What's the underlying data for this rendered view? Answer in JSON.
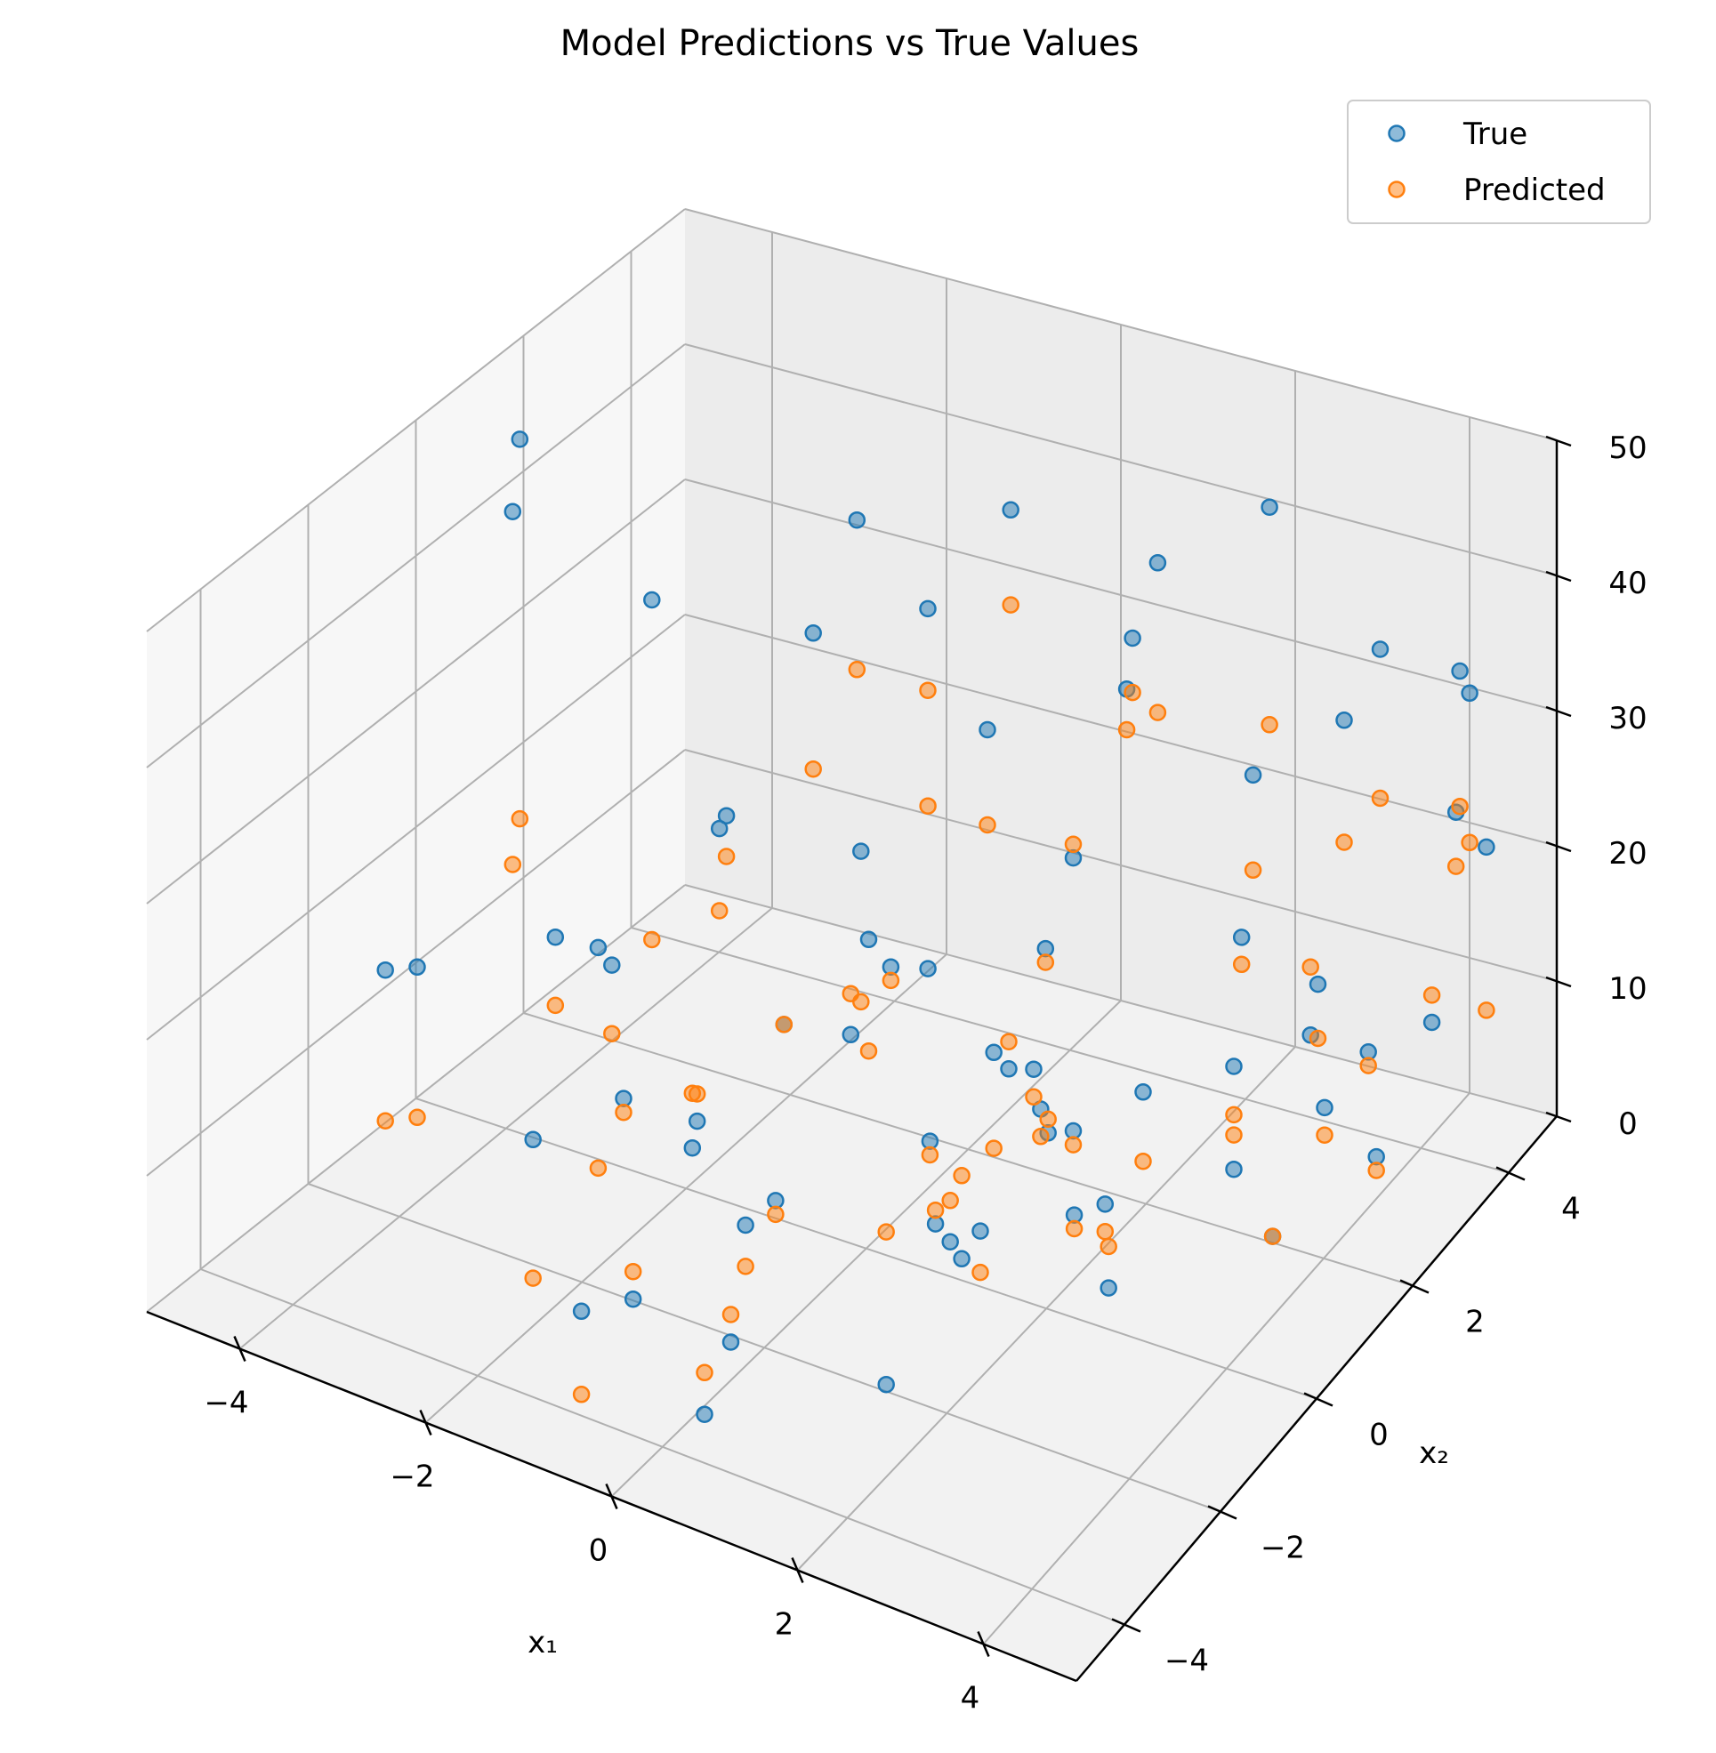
{
  "chart_data": {
    "type": "scatter3d",
    "title": "Model Predictions vs True Values",
    "xlabel": "x₁",
    "ylabel": "x₂",
    "zlabel": "",
    "xlim": [
      -5,
      5
    ],
    "ylim": [
      -5,
      5
    ],
    "zlim": [
      0,
      50
    ],
    "xticks": [
      "−4",
      "−2",
      "0",
      "2",
      "4"
    ],
    "yticks": [
      "−4",
      "−2",
      "0",
      "2",
      "4"
    ],
    "zticks": [
      "0",
      "10",
      "20",
      "30",
      "40",
      "50"
    ],
    "grid": true,
    "legend_position": "top-right",
    "series": [
      {
        "name": "True",
        "color": "#1f77b4",
        "points": [
          [
            -4.8,
            1.6,
            44
          ],
          [
            -4.4,
            0.8,
            42
          ],
          [
            -3.2,
            1.4,
            36
          ],
          [
            -3.4,
            -2.7,
            22
          ],
          [
            -3.1,
            -0.6,
            18
          ],
          [
            -1.2,
            0.5,
            12
          ],
          [
            -1.9,
            -1.6,
            22
          ],
          [
            -3.0,
            -4.0,
            27
          ],
          [
            -0.2,
            -4.4,
            26
          ],
          [
            -1.4,
            -0.4,
            29
          ],
          [
            -0.8,
            1.1,
            10
          ],
          [
            -1.5,
            3.8,
            4
          ],
          [
            -1.8,
            2.1,
            34
          ],
          [
            -2.6,
            1.8,
            20
          ],
          [
            -1.7,
            -0.4,
            5
          ],
          [
            -1.1,
            -2.6,
            3
          ],
          [
            -0.6,
            -4.5,
            10
          ],
          [
            -0.9,
            -4.9,
            23
          ],
          [
            -0.4,
            0.6,
            26
          ],
          [
            -0.1,
            -1.6,
            9
          ],
          [
            0.2,
            0.9,
            5
          ],
          [
            0.8,
            1.1,
            12
          ],
          [
            0.6,
            0.3,
            2
          ],
          [
            1.7,
            1.1,
            2
          ],
          [
            1.1,
            -0.3,
            4
          ],
          [
            1.5,
            -2.3,
            2
          ],
          [
            2.0,
            -1.7,
            10
          ],
          [
            2.3,
            -0.8,
            21
          ],
          [
            2.9,
            -1.1,
            19
          ],
          [
            3.4,
            -0.6,
            21
          ],
          [
            3.1,
            1.8,
            13
          ],
          [
            3.3,
            3.0,
            11
          ],
          [
            2.6,
            2.7,
            1
          ],
          [
            3.7,
            1.5,
            3
          ],
          [
            3.9,
            2.2,
            10
          ],
          [
            4.1,
            2.9,
            4
          ],
          [
            1.4,
            3.3,
            41
          ],
          [
            2.5,
            3.6,
            46
          ],
          [
            3.2,
            4.6,
            33
          ],
          [
            4.0,
            4.8,
            32
          ],
          [
            4.5,
            4.1,
            34
          ],
          [
            4.8,
            3.9,
            24
          ],
          [
            1.5,
            4.8,
            8
          ],
          [
            3.9,
            4.9,
            21
          ],
          [
            2.9,
            4.4,
            28
          ],
          [
            0.5,
            3.2,
            18
          ],
          [
            -0.3,
            2.9,
            27
          ],
          [
            1.0,
            3.5,
            34
          ],
          [
            -0.5,
            3.7,
            40
          ],
          [
            0.3,
            4.6,
            25
          ],
          [
            2.2,
            3.8,
            25
          ],
          [
            0.7,
            2.3,
            15
          ],
          [
            2.6,
            4.4,
            8
          ],
          [
            0.0,
            2.8,
            3
          ],
          [
            1.8,
            -3.2,
            38
          ],
          [
            -0.8,
            2.6,
            36
          ],
          [
            -1.6,
            2.6,
            41
          ],
          [
            -2.1,
            4.1,
            2
          ],
          [
            0.4,
            -3.9,
            3
          ],
          [
            2.8,
            -0.2,
            4
          ],
          [
            -0.2,
            -2.3,
            1
          ],
          [
            1.6,
            -0.6,
            7
          ],
          [
            0.9,
            2.0,
            3
          ],
          [
            -2.4,
            0.9,
            1
          ],
          [
            1.1,
            1.5,
            7
          ],
          [
            3.4,
            4.0,
            6
          ],
          [
            2.1,
            1.0,
            4
          ],
          [
            -0.6,
            -1.3,
            5
          ],
          [
            4.4,
            3.5,
            12
          ],
          [
            -1.2,
            -3.1,
            30
          ]
        ]
      },
      {
        "name": "Predicted",
        "color": "#ff7f0e",
        "points": [
          [
            -4.8,
            1.6,
            16
          ],
          [
            -4.4,
            0.8,
            16
          ],
          [
            -3.2,
            1.4,
            11
          ],
          [
            -3.4,
            -2.7,
            11
          ],
          [
            -3.1,
            -0.6,
            13
          ],
          [
            -1.2,
            0.5,
            12
          ],
          [
            -1.9,
            -1.6,
            17
          ],
          [
            -3.0,
            -4.0,
            16
          ],
          [
            -0.2,
            -4.4,
            25
          ],
          [
            -1.4,
            -0.4,
            23
          ],
          [
            -0.8,
            1.1,
            13
          ],
          [
            -1.5,
            3.8,
            16
          ],
          [
            -1.8,
            2.1,
            24
          ],
          [
            -2.6,
            1.8,
            17
          ],
          [
            -1.7,
            -0.4,
            9
          ],
          [
            -1.1,
            -2.6,
            5
          ],
          [
            -0.6,
            -4.5,
            4
          ],
          [
            -0.9,
            -4.9,
            13
          ],
          [
            -0.4,
            0.6,
            15
          ],
          [
            -0.1,
            -1.6,
            8
          ],
          [
            0.2,
            0.9,
            4
          ],
          [
            0.8,
            1.1,
            5
          ],
          [
            0.6,
            0.3,
            3
          ],
          [
            1.7,
            1.1,
            1
          ],
          [
            1.1,
            -0.3,
            7
          ],
          [
            1.5,
            -2.3,
            13
          ],
          [
            2.0,
            -1.7,
            16
          ],
          [
            2.3,
            -0.8,
            19
          ],
          [
            2.9,
            -1.1,
            18
          ],
          [
            3.4,
            -0.6,
            16
          ],
          [
            3.1,
            1.8,
            8
          ],
          [
            3.3,
            3.0,
            16
          ],
          [
            2.6,
            2.7,
            5
          ],
          [
            3.7,
            1.5,
            3
          ],
          [
            3.9,
            2.2,
            8
          ],
          [
            4.1,
            2.9,
            3
          ],
          [
            1.4,
            3.3,
            30
          ],
          [
            2.5,
            3.6,
            30
          ],
          [
            3.2,
            4.6,
            22
          ],
          [
            4.0,
            4.8,
            22
          ],
          [
            4.5,
            4.1,
            23
          ],
          [
            4.8,
            3.9,
            12
          ],
          [
            1.5,
            4.8,
            6
          ],
          [
            3.9,
            4.9,
            17
          ],
          [
            2.9,
            4.4,
            19
          ],
          [
            0.5,
            3.2,
            19
          ],
          [
            -0.3,
            2.9,
            20
          ],
          [
            1.0,
            3.5,
            30
          ],
          [
            -0.5,
            3.7,
            33
          ],
          [
            0.3,
            4.6,
            22
          ],
          [
            2.2,
            3.8,
            18
          ],
          [
            0.7,
            2.3,
            14
          ],
          [
            2.6,
            4.4,
            4
          ],
          [
            0.0,
            2.8,
            5
          ],
          [
            1.8,
            -3.2,
            30
          ],
          [
            -0.8,
            2.6,
            30
          ],
          [
            -1.6,
            2.6,
            30
          ],
          [
            -2.1,
            4.1,
            1
          ],
          [
            0.4,
            -3.9,
            6
          ],
          [
            2.8,
            -0.2,
            7
          ],
          [
            -0.2,
            -2.3,
            3
          ],
          [
            1.6,
            -0.6,
            4
          ],
          [
            0.9,
            2.0,
            4
          ],
          [
            -2.4,
            0.9,
            3
          ],
          [
            1.1,
            1.5,
            5
          ],
          [
            3.4,
            4.0,
            5
          ],
          [
            2.1,
            1.0,
            2
          ],
          [
            -0.6,
            -1.3,
            2
          ],
          [
            4.4,
            3.5,
            14
          ],
          [
            -1.2,
            -3.1,
            14
          ]
        ]
      }
    ]
  }
}
